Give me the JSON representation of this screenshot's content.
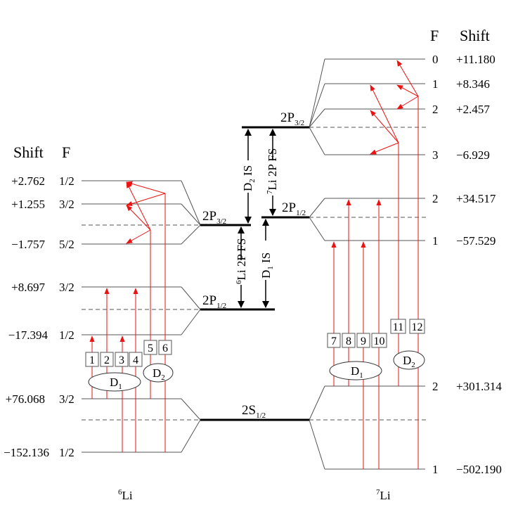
{
  "li6": {
    "header": {
      "shift": "Shift",
      "f": "F"
    },
    "levels": [
      {
        "shift": "+2.762",
        "f": "1/2"
      },
      {
        "shift": "+1.255",
        "f": "3/2"
      },
      {
        "shift": "−1.757",
        "f": "5/2"
      },
      {
        "shift": "+8.697",
        "f": "3/2"
      },
      {
        "shift": "−17.394",
        "f": "1/2"
      },
      {
        "shift": "+76.068",
        "f": "3/2"
      },
      {
        "shift": "−152.136",
        "f": "1/2"
      }
    ],
    "transitions": [
      "1",
      "2",
      "3",
      "4",
      "5",
      "6"
    ],
    "d1": "D",
    "d1_sub": "1",
    "d2": "D",
    "d2_sub": "2",
    "isotope_sup": "6",
    "isotope": "Li"
  },
  "li7": {
    "header": {
      "f": "F",
      "shift": "Shift"
    },
    "levels": [
      {
        "f": "0",
        "shift": "+11.180"
      },
      {
        "f": "1",
        "shift": "+8.346"
      },
      {
        "f": "2",
        "shift": "+2.457"
      },
      {
        "f": "3",
        "shift": "−6.929"
      },
      {
        "f": "2",
        "shift": "+34.517"
      },
      {
        "f": "1",
        "shift": "−57.529"
      },
      {
        "f": "2",
        "shift": "+301.314"
      },
      {
        "f": "1",
        "shift": "−502.190"
      }
    ],
    "transitions": [
      "7",
      "8",
      "9",
      "10",
      "11",
      "12"
    ],
    "d1": "D",
    "d1_sub": "1",
    "d2": "D",
    "d2_sub": "2",
    "isotope_sup": "7",
    "isotope": "Li"
  },
  "fine_structure": {
    "li6_p32": "2P",
    "li6_p32_sub": "3/2",
    "li6_p12": "2P",
    "li6_p12_sub": "1/2",
    "li7_p32": "2P",
    "li7_p32_sub": "3/2",
    "li7_p12": "2P",
    "li7_p12_sub": "1/2",
    "ground": "2S",
    "ground_sub": "1/2"
  },
  "shifts": {
    "d2_is": "D",
    "d2_is_sub": "2",
    "d2_is_tail": " IS",
    "d1_is": "D",
    "d1_is_sub": "1",
    "d1_is_tail": " IS",
    "li6_fs_sup": "6",
    "li6_fs": "Li 2P FS",
    "li7_fs_sup": "7",
    "li7_fs": "Li 2P FS"
  },
  "colors": {
    "arrow": "#ee1111",
    "line": "#000000",
    "thin": "#555555"
  }
}
